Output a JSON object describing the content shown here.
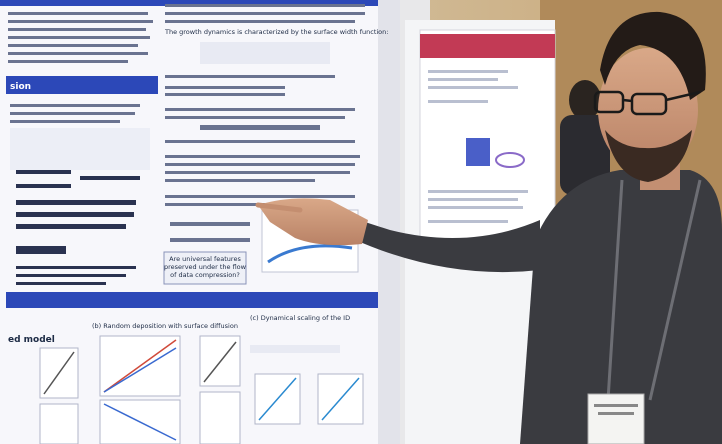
{
  "poster": {
    "headings": [
      "sion",
      "ed model"
    ],
    "paragraph": "The growth dynamics is characterized by the surface width function:",
    "panel_b_title": "(b) Random deposition with surface diffusion",
    "panel_c_title": "(c) Dynamical scaling of the ID",
    "callout": [
      "Are universal features",
      "preserved under the flow",
      "of data compression?"
    ]
  }
}
